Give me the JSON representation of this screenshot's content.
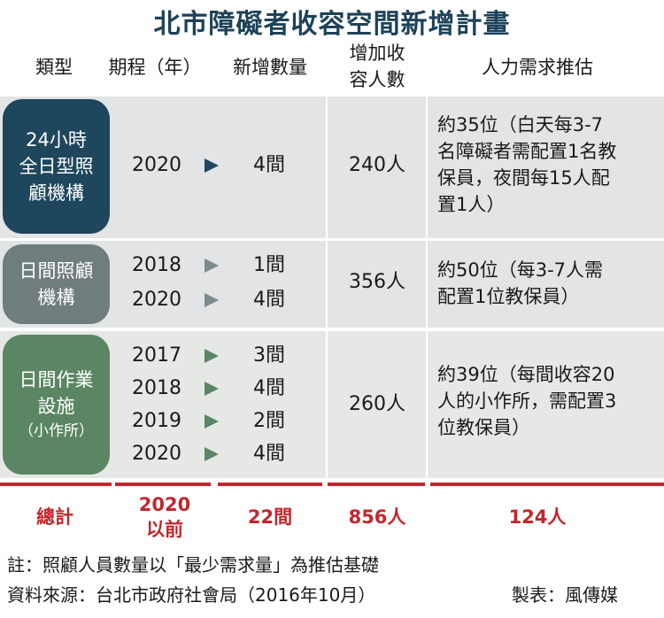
{
  "title": "北市障礙者收容空間新增計畫",
  "headers": {
    "type": "類型",
    "period": "期程（年）",
    "new_count": "新增數量",
    "capacity_line1": "增加收",
    "capacity_line2": "容人數",
    "staff": "人力需求推估"
  },
  "rows": [
    {
      "category": [
        "24小時",
        "全日型照",
        "顧機構"
      ],
      "items": [
        {
          "year": "2020",
          "count": "4間"
        }
      ],
      "capacity": "240人",
      "staff": [
        "約35位（白天每3-7",
        "名障礙者需配置1名教",
        "保員，夜間每15人配",
        "置1人）"
      ]
    },
    {
      "category": [
        "日間照顧",
        "機構"
      ],
      "items": [
        {
          "year": "2018",
          "count": "1間"
        },
        {
          "year": "2020",
          "count": "4間"
        }
      ],
      "capacity": "356人",
      "staff": [
        "約50位（每3-7人需",
        "配置1位教保員）"
      ]
    },
    {
      "category": [
        "日間作業",
        "設施"
      ],
      "category_sub": "（小作所）",
      "items": [
        {
          "year": "2017",
          "count": "3間"
        },
        {
          "year": "2018",
          "count": "4間"
        },
        {
          "year": "2019",
          "count": "2間"
        },
        {
          "year": "2020",
          "count": "4間"
        }
      ],
      "capacity": "260人",
      "staff": [
        "約39位（每間收容20",
        "人的小作所，需配置3",
        "位教保員）"
      ]
    }
  ],
  "totals": {
    "label": "總計",
    "period_line1": "2020",
    "period_line2": "以前",
    "count": "22間",
    "capacity": "856人",
    "staff": "124人"
  },
  "footer": {
    "note": "註：照顧人員數量以「最少需求量」為推估基礎",
    "source": "資料來源：台北市政府社會局（2016年10月）",
    "credit": "製表：風傳媒"
  },
  "colors": {
    "title": "#1d4259",
    "cat_24h": "#1e465c",
    "cat_day_care": "#6f7d7e",
    "cat_workshop": "#5b8663",
    "total_red": "#c1272d",
    "band": "#e2e4e5"
  }
}
